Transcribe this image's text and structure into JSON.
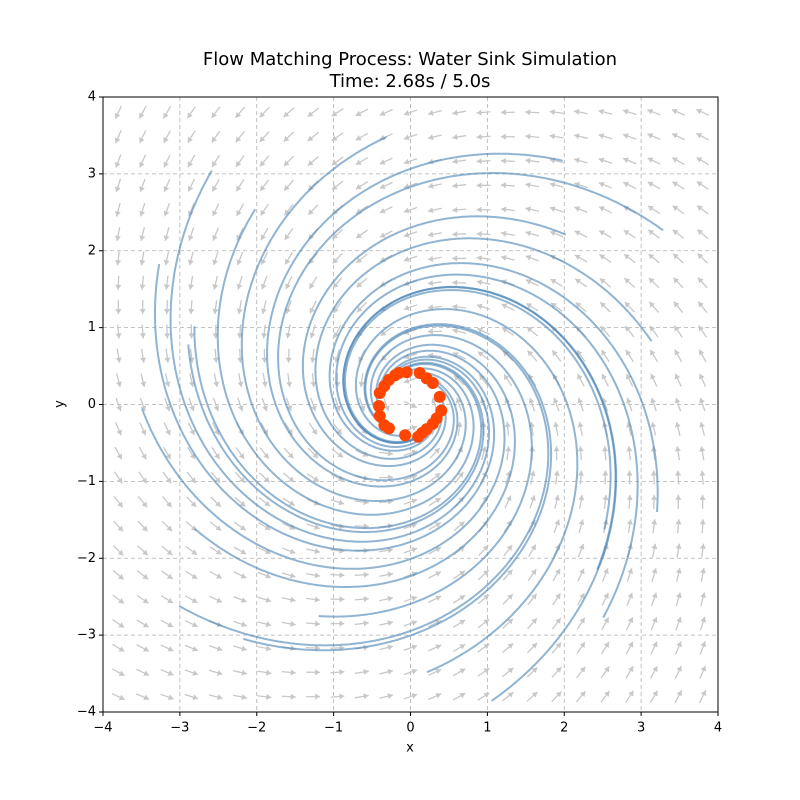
{
  "chart_data": {
    "type": "scatter",
    "title": "Flow Matching Process: Water Sink Simulation",
    "subtitle": "Time: 2.68s / 5.0s",
    "x_label": "x",
    "y_label": "y",
    "xlim": [
      -4,
      4
    ],
    "ylim": [
      -4,
      4
    ],
    "xticks": [
      {
        "value": -4,
        "label": "−4"
      },
      {
        "value": -3,
        "label": "−3"
      },
      {
        "value": -2,
        "label": "−2"
      },
      {
        "value": -1,
        "label": "−1"
      },
      0,
      1,
      2,
      3,
      4
    ],
    "yticks": [
      {
        "value": -4,
        "label": "−4"
      },
      {
        "value": -3,
        "label": "−3"
      },
      {
        "value": -2,
        "label": "−2"
      },
      {
        "value": -1,
        "label": "−1"
      },
      0,
      1,
      2,
      3,
      4
    ],
    "grid": true,
    "series": [
      {
        "color": "#ff4500",
        "x": [
          -0.15,
          -0.05,
          0.12,
          0.21,
          0.29,
          0.38,
          0.4,
          0.34,
          0.29,
          0.21,
          0.15,
          0.1,
          -0.07,
          -0.28,
          -0.34,
          -0.4,
          -0.41,
          -0.4,
          -0.34,
          -0.28,
          -0.2
        ],
        "values": [
          0.41,
          0.42,
          0.41,
          0.34,
          0.28,
          0.1,
          -0.08,
          -0.18,
          -0.25,
          -0.32,
          -0.37,
          -0.42,
          -0.4,
          -0.31,
          -0.27,
          -0.15,
          -0.02,
          0.15,
          0.24,
          0.32,
          0.38
        ]
      }
    ]
  }
}
